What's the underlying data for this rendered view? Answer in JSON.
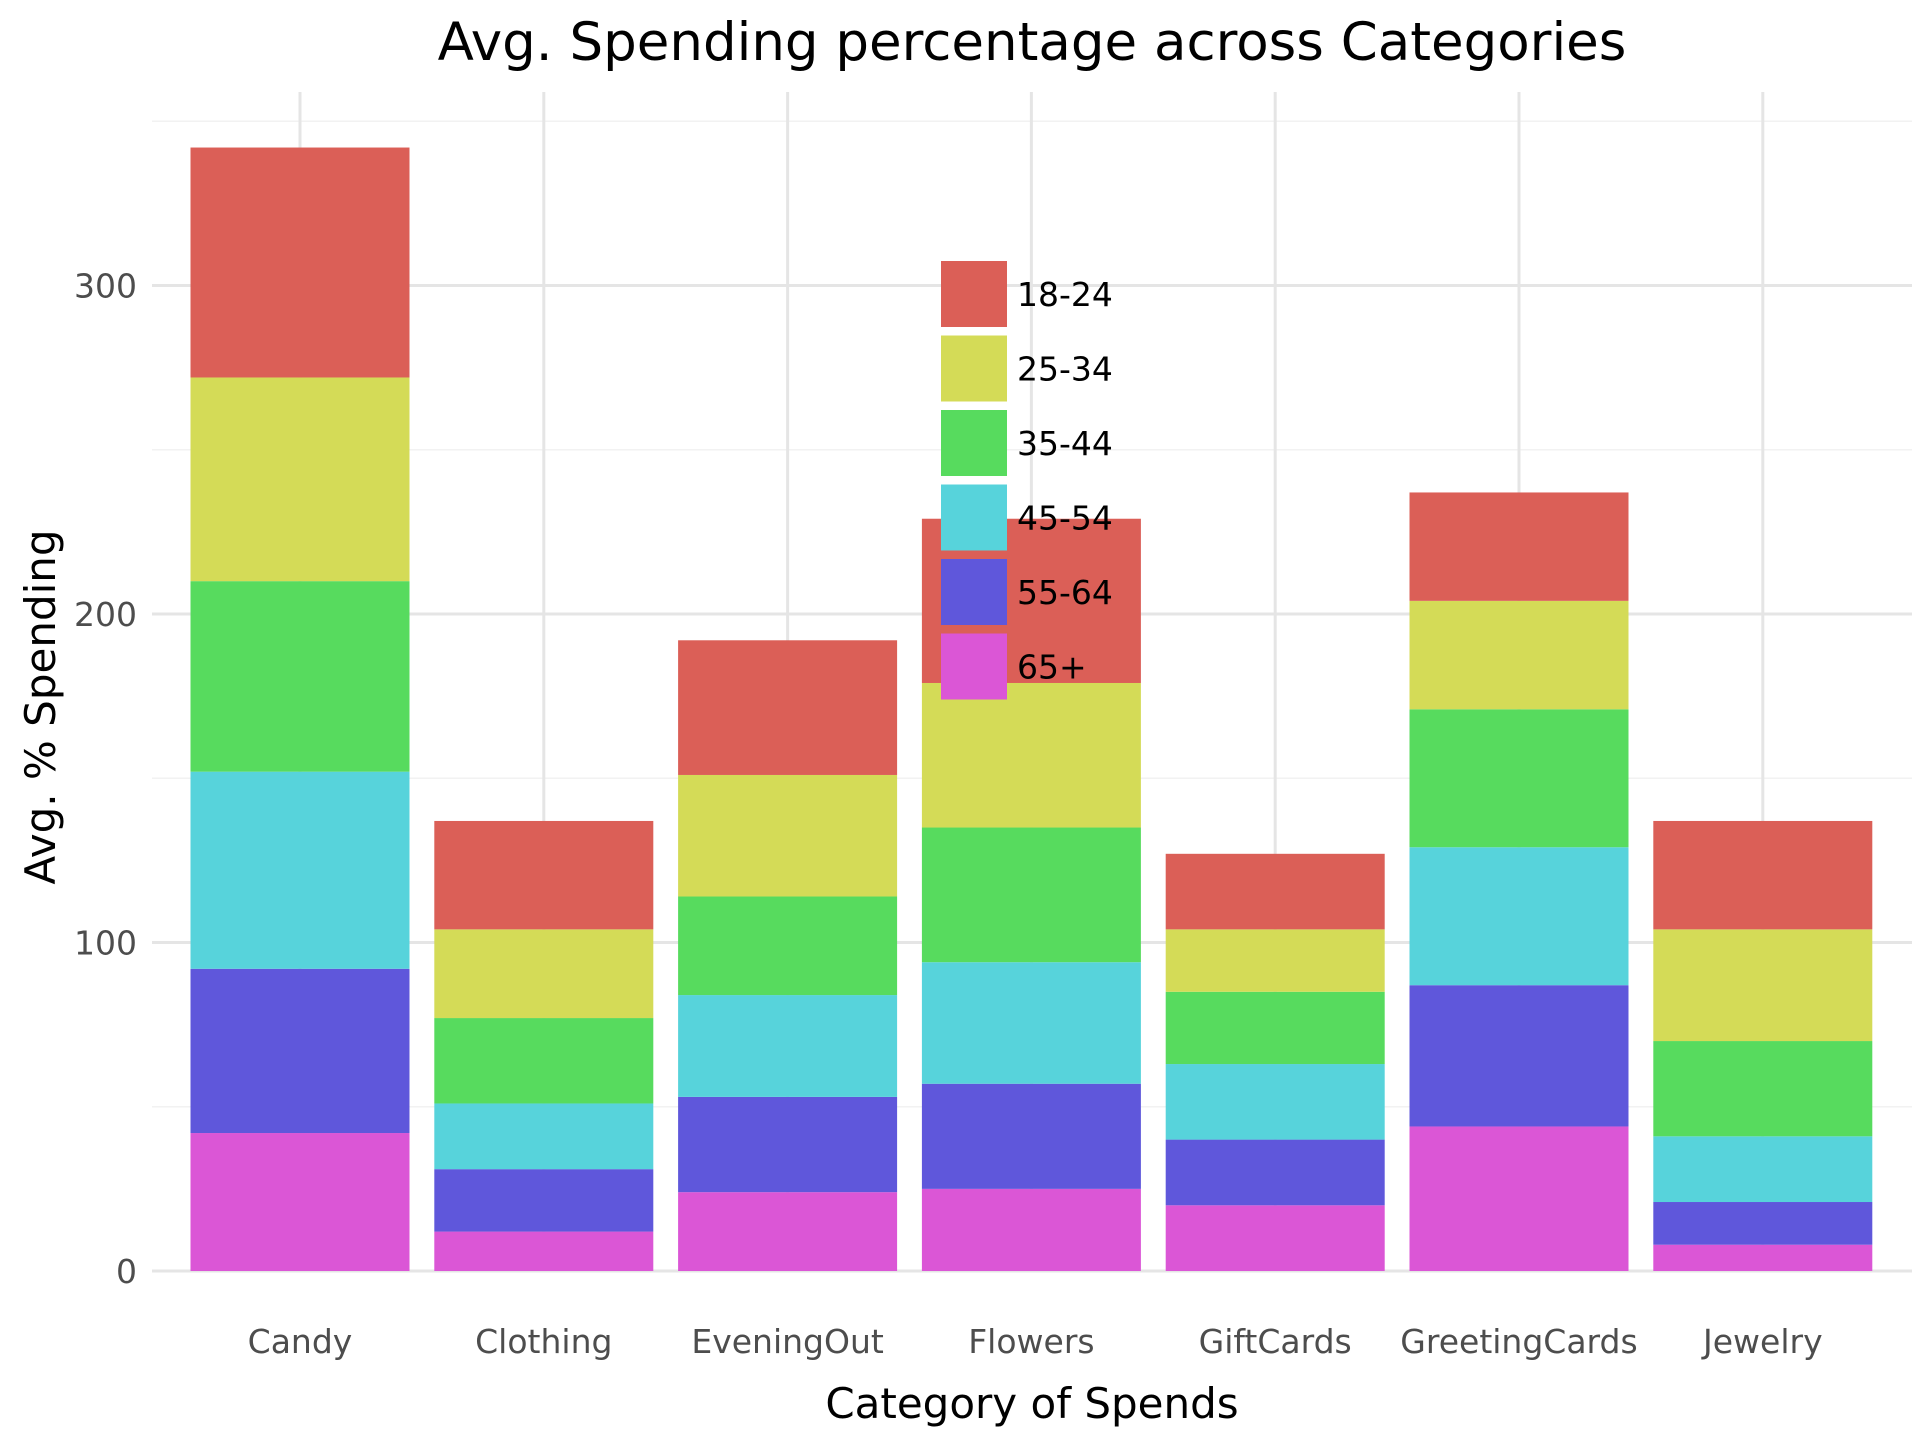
{
  "chart_data": {
    "type": "bar",
    "stacked": true,
    "title": "Avg. Spending percentage across Categories",
    "xlabel": "Category of Spends",
    "ylabel": "Avg. % Spending",
    "categories": [
      "Candy",
      "Clothing",
      "EveningOut",
      "Flowers",
      "GiftCards",
      "GreetingCards",
      "Jewelry"
    ],
    "ylim": [
      0,
      350
    ],
    "yticks": [
      0,
      100,
      200,
      300
    ],
    "grid": true,
    "legend_position": "inside-top-center",
    "series": [
      {
        "name": "65+",
        "color": "#DB56D6",
        "values": [
          42,
          12,
          24,
          25,
          20,
          44,
          8
        ]
      },
      {
        "name": "55-64",
        "color": "#5F57DB",
        "values": [
          50,
          19,
          29,
          32,
          20,
          43,
          13
        ]
      },
      {
        "name": "45-54",
        "color": "#57D3DB",
        "values": [
          60,
          20,
          31,
          37,
          23,
          42,
          20
        ]
      },
      {
        "name": "35-44",
        "color": "#57DB5E",
        "values": [
          58,
          26,
          30,
          41,
          22,
          42,
          29
        ]
      },
      {
        "name": "25-34",
        "color": "#D4DB57",
        "values": [
          62,
          27,
          37,
          44,
          19,
          33,
          34
        ]
      },
      {
        "name": "18-24",
        "color": "#DB5F57",
        "values": [
          70,
          33,
          41,
          50,
          23,
          33,
          33
        ]
      }
    ],
    "legend_order": [
      "18-24",
      "25-34",
      "35-44",
      "45-54",
      "55-64",
      "65+"
    ]
  }
}
